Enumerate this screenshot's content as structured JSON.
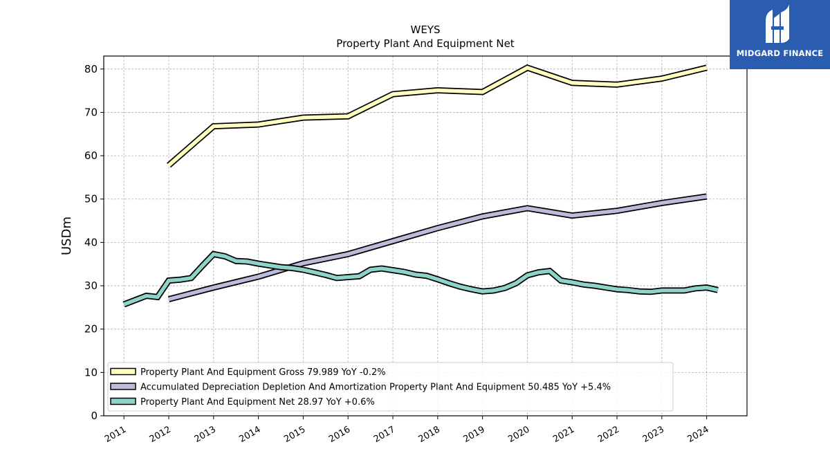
{
  "brand": {
    "name": "MIDGARD FINANCE",
    "color": "#2a5db0"
  },
  "chart_data": {
    "type": "line",
    "title": "WEYS",
    "subtitle": "Property Plant And Equipment Net",
    "ylabel": "USDm",
    "xlabel": "",
    "ylim": [
      0,
      83
    ],
    "xlim": [
      2010.55,
      2024.9
    ],
    "yticks": [
      0,
      10,
      20,
      30,
      40,
      50,
      60,
      70,
      80
    ],
    "xticks": [
      2011,
      2012,
      2013,
      2014,
      2015,
      2016,
      2017,
      2018,
      2019,
      2020,
      2021,
      2022,
      2023,
      2024
    ],
    "grid": true,
    "legend_position": "bottom-left",
    "series": [
      {
        "name": "Property Plant And Equipment Gross",
        "legend_label": "Property Plant And Equipment Gross  79.989 YoY -0.2%",
        "color": "#ffffbf",
        "x": [
          2012.0,
          2013.0,
          2014.0,
          2015.0,
          2016.0,
          2017.0,
          2018.0,
          2019.0,
          2020.0,
          2021.0,
          2022.0,
          2023.0,
          2024.0
        ],
        "y": [
          57.8,
          66.8,
          67.2,
          68.8,
          69.1,
          74.2,
          75.1,
          74.7,
          80.3,
          76.8,
          76.4,
          77.8,
          80.3
        ]
      },
      {
        "name": "Accumulated Depreciation Depletion And Amortization Property Plant And Equipment",
        "legend_label": "Accumulated Depreciation Depletion And Amortization Property Plant And Equipment  50.485 YoY +5.4%",
        "color": "#bebada",
        "x": [
          2012.0,
          2013.0,
          2014.0,
          2015.0,
          2016.0,
          2017.0,
          2018.0,
          2019.0,
          2020.0,
          2021.0,
          2022.0,
          2023.0,
          2024.0
        ],
        "y": [
          26.9,
          29.6,
          32.1,
          35.2,
          37.3,
          40.3,
          43.3,
          46.0,
          47.9,
          46.2,
          47.3,
          49.1,
          50.6
        ]
      },
      {
        "name": "Property Plant And Equipment Net",
        "legend_label": "Property Plant And Equipment Net  28.97 YoY +0.6%",
        "color": "#8dd3c7",
        "x": [
          2011.0,
          2011.5,
          2011.75,
          2012.0,
          2012.25,
          2012.5,
          2012.75,
          2013.0,
          2013.25,
          2013.5,
          2013.75,
          2014.0,
          2014.25,
          2014.5,
          2014.75,
          2015.0,
          2015.25,
          2015.5,
          2015.75,
          2016.0,
          2016.25,
          2016.5,
          2016.75,
          2017.0,
          2017.25,
          2017.5,
          2017.75,
          2018.0,
          2018.25,
          2018.5,
          2018.75,
          2019.0,
          2019.25,
          2019.5,
          2019.75,
          2020.0,
          2020.25,
          2020.5,
          2020.75,
          2021.0,
          2021.25,
          2021.5,
          2021.75,
          2022.0,
          2022.25,
          2022.5,
          2022.75,
          2023.0,
          2023.25,
          2023.5,
          2023.75,
          2024.0,
          2024.25
        ],
        "y": [
          25.7,
          27.7,
          27.4,
          31.2,
          31.4,
          31.8,
          34.6,
          37.3,
          36.8,
          35.7,
          35.6,
          35.1,
          34.7,
          34.3,
          34.1,
          33.7,
          33.1,
          32.5,
          31.8,
          32.0,
          32.2,
          33.7,
          34.0,
          33.6,
          33.2,
          32.6,
          32.3,
          31.5,
          30.6,
          29.8,
          29.2,
          28.7,
          28.9,
          29.5,
          30.6,
          32.4,
          33.1,
          33.4,
          31.2,
          30.8,
          30.3,
          30.0,
          29.6,
          29.2,
          29.0,
          28.7,
          28.6,
          28.9,
          28.9,
          28.9,
          29.4,
          29.6,
          29.0
        ]
      }
    ]
  }
}
